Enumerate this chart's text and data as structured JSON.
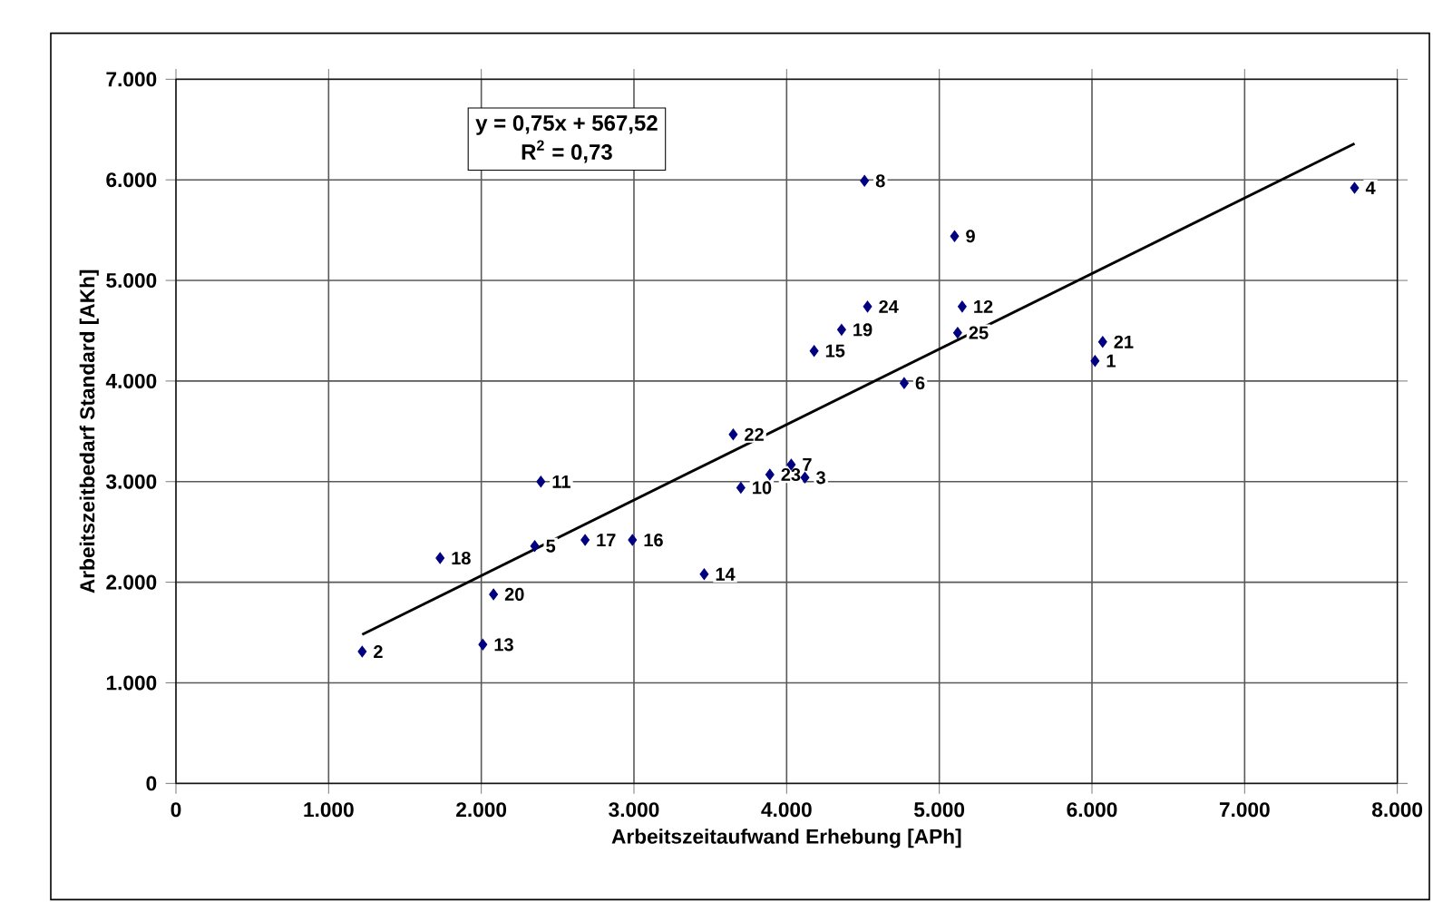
{
  "chart_data": {
    "type": "scatter",
    "xlabel": "Arbeitszeitaufwand Erhebung [APh]",
    "ylabel": "Arbeitszeitbedarf Standard [AKh]",
    "xlim": [
      0,
      8000
    ],
    "ylim": [
      0,
      7000
    ],
    "xticks": [
      0,
      {
        "value": 1000,
        "label": "1.000"
      },
      {
        "value": 2000,
        "label": "2.000"
      },
      {
        "value": 3000,
        "label": "3.000"
      },
      {
        "value": 4000,
        "label": "4.000"
      },
      {
        "value": 5000,
        "label": "5.000"
      },
      {
        "value": 6000,
        "label": "6.000"
      },
      {
        "value": 7000,
        "label": "7.000"
      },
      {
        "value": 8000,
        "label": "8.000"
      }
    ],
    "yticks": [
      0,
      {
        "value": 1000,
        "label": "1.000"
      },
      {
        "value": 2000,
        "label": "2.000"
      },
      {
        "value": 3000,
        "label": "3.000"
      },
      {
        "value": 4000,
        "label": "4.000"
      },
      {
        "value": 5000,
        "label": "5.000"
      },
      {
        "value": 6000,
        "label": "6.000"
      },
      {
        "value": 7000,
        "label": "7.000"
      }
    ],
    "grid": true,
    "annotations": [
      "y = 0,75x + 567,52",
      "R$^{2}$ = 0,73",
      {
        "text": "1",
        "x": 6020,
        "y": 4200
      },
      {
        "text": "2",
        "x": 1220,
        "y": 1310
      },
      {
        "text": "3",
        "x": 4120,
        "y": 3040
      },
      {
        "text": "4",
        "x": 7720,
        "y": 5920
      },
      {
        "text": "5",
        "x": 2350,
        "y": 2360
      },
      {
        "text": "6",
        "x": 4770,
        "y": 3980
      },
      {
        "text": "7",
        "x": 4030,
        "y": 3170
      },
      {
        "text": "8",
        "x": 4510,
        "y": 5990
      },
      {
        "text": "9",
        "x": 5100,
        "y": 5440
      },
      {
        "text": "10",
        "x": 3700,
        "y": 2940
      },
      {
        "text": "11",
        "x": 2390,
        "y": 3000
      },
      {
        "text": "12",
        "x": 5150,
        "y": 4740
      },
      {
        "text": "13",
        "x": 2010,
        "y": 1380
      },
      {
        "text": "14",
        "x": 3460,
        "y": 2080
      },
      {
        "text": "15",
        "x": 4180,
        "y": 4300
      },
      {
        "text": "16",
        "x": 2990,
        "y": 2420
      },
      {
        "text": "17",
        "x": 2680,
        "y": 2420
      },
      {
        "text": "18",
        "x": 1730,
        "y": 2240
      },
      {
        "text": "19",
        "x": 4360,
        "y": 4510
      },
      {
        "text": "20",
        "x": 2080,
        "y": 1880
      },
      {
        "text": "21",
        "x": 6070,
        "y": 4390
      },
      {
        "text": "22",
        "x": 3650,
        "y": 3470
      },
      {
        "text": "23",
        "x": 3890,
        "y": 3070
      },
      {
        "text": "24",
        "x": 4530,
        "y": 4740
      },
      {
        "text": "25",
        "x": 5120,
        "y": 4480
      }
    ],
    "series": [
      {
        "color": "#000080",
        "marker": "diamond",
        "x": [
          6020,
          1220,
          4120,
          7720,
          2350,
          4770,
          4030,
          4510,
          5100,
          3700,
          2390,
          5150,
          2010,
          3460,
          4180,
          2990,
          2680,
          1730,
          4360,
          2080,
          6070,
          3650,
          3890,
          4530,
          5120
        ],
        "values": [
          4200,
          1310,
          3040,
          5920,
          2360,
          3980,
          3170,
          5990,
          5440,
          2940,
          3000,
          4740,
          1380,
          2080,
          4300,
          2420,
          2420,
          2240,
          4510,
          1880,
          4390,
          3470,
          3070,
          4740,
          4480
        ]
      },
      {
        "type": "line",
        "color": "#000000",
        "marker": "none",
        "line_style": "solid",
        "x": [
          1220,
          7720
        ],
        "values": [
          1480,
          6360
        ]
      }
    ]
  }
}
